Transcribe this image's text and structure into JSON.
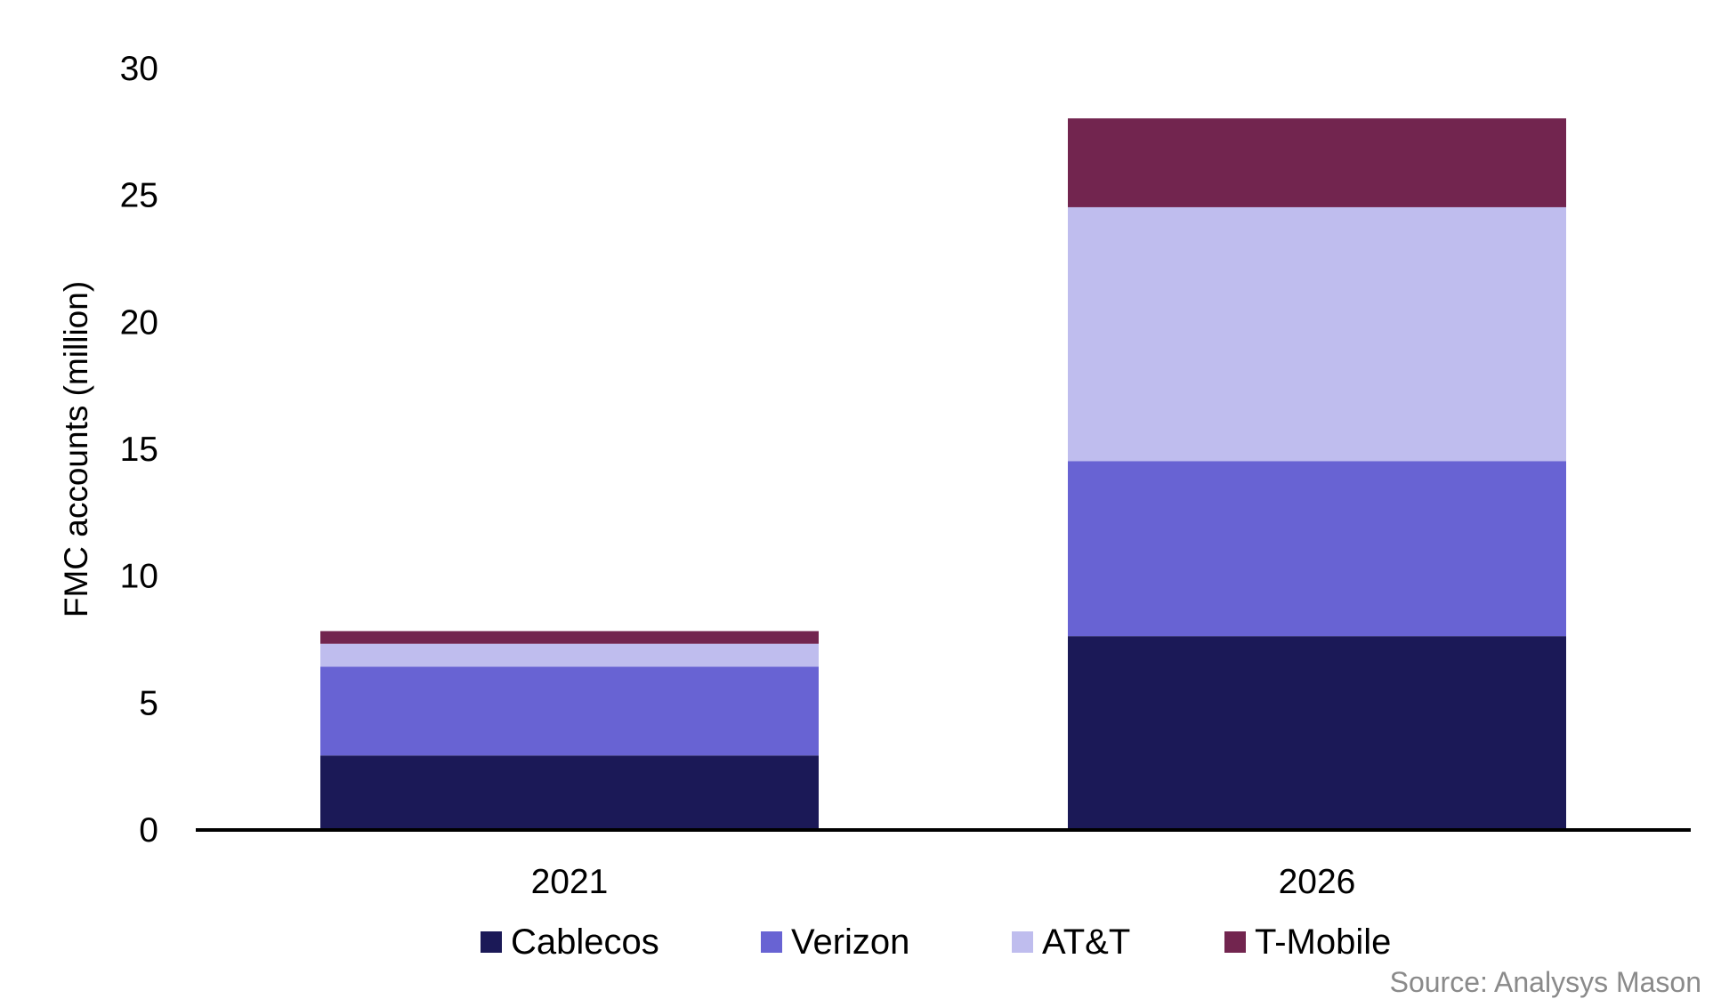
{
  "chart_data": {
    "type": "bar",
    "stacked": true,
    "title": "",
    "xlabel": "",
    "ylabel": "FMC accounts (million)",
    "ylim": [
      0,
      30
    ],
    "yticks": [
      0,
      5,
      10,
      15,
      20,
      25,
      30
    ],
    "categories": [
      "2021",
      "2026"
    ],
    "series": [
      {
        "name": "Cablecos",
        "color": "#1b1957",
        "values": [
          2.9,
          7.6
        ]
      },
      {
        "name": "Verizon",
        "color": "#6863d3",
        "values": [
          3.5,
          6.9
        ]
      },
      {
        "name": "AT&T",
        "color": "#bfbdee",
        "values": [
          0.9,
          10.0
        ]
      },
      {
        "name": "T-Mobile",
        "color": "#72254f",
        "values": [
          0.5,
          3.5
        ]
      }
    ],
    "grid": false,
    "legend_position": "bottom",
    "source": "Source: Analysys Mason"
  }
}
